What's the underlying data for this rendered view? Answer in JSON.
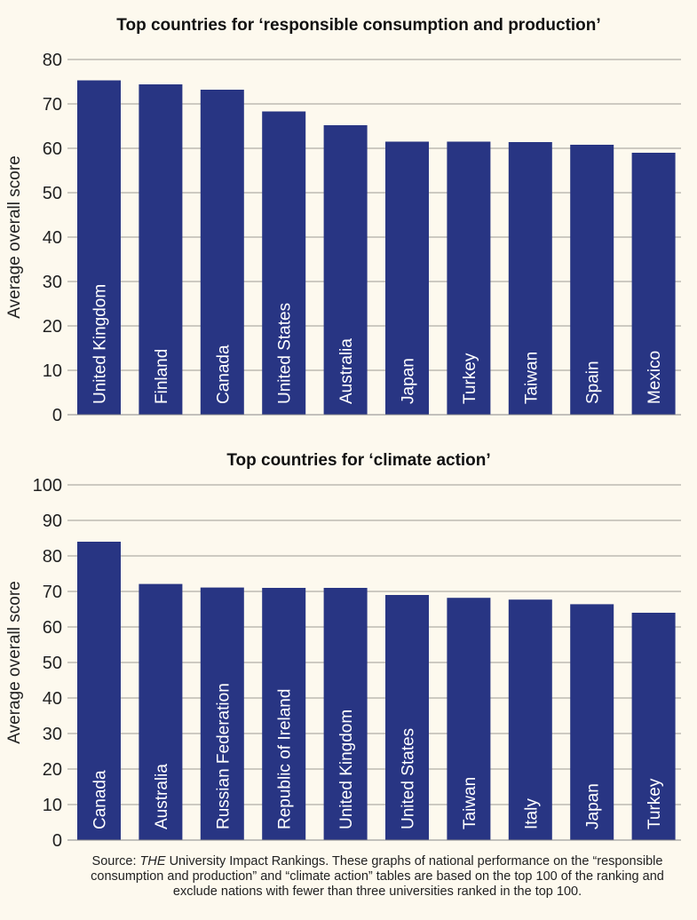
{
  "chart_data": [
    {
      "type": "bar",
      "title": "Top countries for ‘responsible consumption and production’",
      "xlabel": "",
      "ylabel": "Average overall score",
      "ylim": [
        0,
        80
      ],
      "yticks": [
        0,
        10,
        20,
        30,
        40,
        50,
        60,
        70,
        80
      ],
      "grid": true,
      "categories": [
        "United Kingdom",
        "Finland",
        "Canada",
        "United States",
        "Australia",
        "Japan",
        "Turkey",
        "Taiwan",
        "Spain",
        "Mexico"
      ],
      "values": [
        75.3,
        74.4,
        73.2,
        68.3,
        65.2,
        61.5,
        61.5,
        61.4,
        60.8,
        59.0
      ],
      "bar_color": "#283583"
    },
    {
      "type": "bar",
      "title": "Top countries for ‘climate action’",
      "xlabel": "",
      "ylabel": "Average overall score",
      "ylim": [
        0,
        100
      ],
      "yticks": [
        0,
        10,
        20,
        30,
        40,
        50,
        60,
        70,
        80,
        90,
        100
      ],
      "grid": true,
      "categories": [
        "Canada",
        "Australia",
        "Russian Federation",
        "Republic of Ireland",
        "United Kingdom",
        "United States",
        "Taiwan",
        "Italy",
        "Japan",
        "Turkey"
      ],
      "values": [
        84.0,
        72.1,
        71.1,
        71.0,
        71.0,
        69.0,
        68.2,
        67.7,
        66.4,
        64.0
      ],
      "bar_color": "#283583"
    }
  ],
  "source": {
    "prefix": "Source: ",
    "italic": "THE",
    "text": " University Impact Rankings. These graphs of national performance on the “responsible consumption and production” and “climate action” tables are based on the top 100 of the ranking and exclude nations with fewer than three universities ranked in the top 100."
  },
  "background_color": "#fdf9ee"
}
